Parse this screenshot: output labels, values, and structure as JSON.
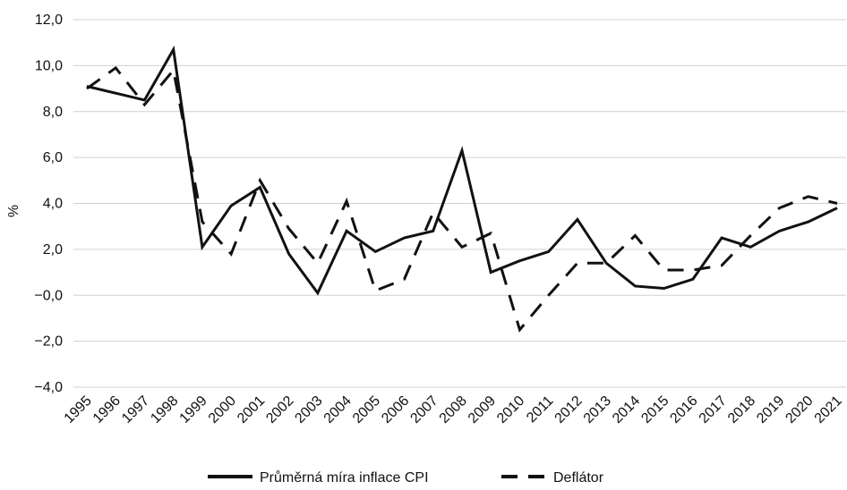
{
  "chart_data": {
    "type": "line",
    "y_label": "%",
    "categories": [
      "1995",
      "1996",
      "1997",
      "1998",
      "1999",
      "2000",
      "2001",
      "2002",
      "2003",
      "2004",
      "2005",
      "2006",
      "2007",
      "2008",
      "2009",
      "2010",
      "2011",
      "2012",
      "2013",
      "2014",
      "2015",
      "2016",
      "2017",
      "2018",
      "2019",
      "2020",
      "2021"
    ],
    "series": [
      {
        "name": "Průměrná míra inflace CPI",
        "color": "#111111",
        "dash": "solid",
        "values": [
          9.1,
          8.8,
          8.5,
          10.7,
          2.1,
          3.9,
          4.7,
          1.8,
          0.1,
          2.8,
          1.9,
          2.5,
          2.8,
          6.3,
          1.0,
          1.5,
          1.9,
          3.3,
          1.4,
          0.4,
          0.3,
          0.7,
          2.5,
          2.1,
          2.8,
          3.2,
          3.8
        ]
      },
      {
        "name": "Deflátor",
        "color": "#111111",
        "dash": "dashed",
        "values": [
          9.0,
          9.9,
          8.3,
          9.8,
          3.2,
          1.8,
          5.0,
          2.9,
          1.4,
          4.1,
          0.2,
          0.7,
          3.6,
          2.1,
          2.7,
          -1.5,
          0.0,
          1.4,
          1.4,
          2.6,
          1.1,
          1.1,
          1.3,
          2.6,
          3.8,
          4.3,
          4.0
        ]
      }
    ],
    "ylim": [
      -4,
      12
    ],
    "yticks": [
      {
        "value": -4,
        "label": "−4,0"
      },
      {
        "value": -2,
        "label": "−2,0"
      },
      {
        "value": 0,
        "label": "−0,0"
      },
      {
        "value": 2,
        "label": "2,0"
      },
      {
        "value": 4,
        "label": "4,0"
      },
      {
        "value": 6,
        "label": "6,0"
      },
      {
        "value": 8,
        "label": "8,0"
      },
      {
        "value": 10,
        "label": "10,0"
      },
      {
        "value": 12,
        "label": "12,0"
      }
    ],
    "grid": true
  }
}
